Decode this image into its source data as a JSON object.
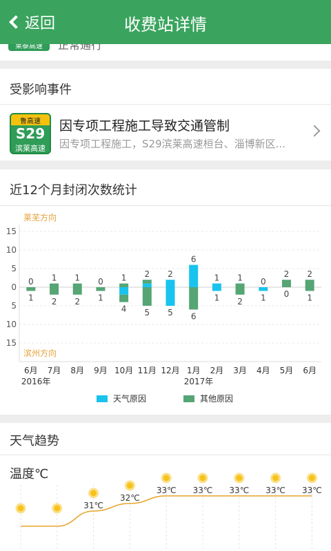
{
  "header": {
    "back_label": "返回",
    "title": "收费站详情"
  },
  "top_partial": {
    "badge": "莱泰高速",
    "text": "正常通行"
  },
  "events": {
    "heading": "受影响事件",
    "item": {
      "badge_top": "鲁高速",
      "badge_code": "S29",
      "badge_name": "滨莱高速",
      "title": "因专项工程施工导致交通管制",
      "subtitle": "因专项工程施工，S29滨莱高速桓台、淄博新区..."
    }
  },
  "closure_chart": {
    "heading": "近12个月封闭次数统计",
    "chart_data": {
      "type": "bar",
      "top_direction_label": "莱芜方向",
      "bottom_direction_label": "滨州方向",
      "y_ticks": [
        "15",
        "10",
        "5",
        "0",
        "5",
        "10",
        "15"
      ],
      "categories": [
        "6月",
        "7月",
        "8月",
        "9月",
        "10月",
        "11月",
        "12月",
        "1月",
        "2月",
        "3月",
        "4月",
        "5月",
        "6月"
      ],
      "year_labels": [
        {
          "index": 0,
          "text": "2016年"
        },
        {
          "index": 7,
          "text": "2017年"
        }
      ],
      "ylim": [
        -15,
        15
      ],
      "up": {
        "weather": [
          0,
          0,
          0,
          0,
          0,
          1,
          2,
          6,
          1,
          0,
          0,
          0,
          0
        ],
        "other": [
          0,
          1,
          1,
          0,
          1,
          1,
          0,
          0,
          0,
          1,
          0,
          2,
          2
        ],
        "totals": [
          0,
          1,
          1,
          0,
          1,
          2,
          2,
          6,
          1,
          1,
          0,
          2,
          2
        ]
      },
      "down": {
        "weather": [
          0,
          0,
          0,
          0,
          2,
          0,
          5,
          0,
          1,
          0,
          1,
          0,
          0
        ],
        "other": [
          1,
          2,
          2,
          1,
          2,
          5,
          0,
          6,
          0,
          2,
          0,
          0,
          1
        ],
        "totals": [
          1,
          2,
          2,
          1,
          4,
          5,
          5,
          6,
          1,
          2,
          1,
          0,
          1
        ]
      },
      "legend": [
        {
          "label": "天气原因",
          "color": "#19c3ee"
        },
        {
          "label": "其他原因",
          "color": "#55a575"
        }
      ]
    }
  },
  "weather_trend": {
    "heading": "天气趋势",
    "temp_label": "温度℃",
    "points": [
      {
        "value": 29,
        "label": ""
      },
      {
        "value": 29,
        "label": ""
      },
      {
        "value": 31,
        "label": "31℃"
      },
      {
        "value": 32,
        "label": "32℃"
      },
      {
        "value": 33,
        "label": "33℃"
      },
      {
        "value": 33,
        "label": "33℃"
      },
      {
        "value": 33,
        "label": "33℃"
      },
      {
        "value": 33,
        "label": "33℃"
      },
      {
        "value": 33,
        "label": "33℃"
      }
    ],
    "colors": {
      "line": "#e6a42a",
      "sun": "#f7c21b"
    }
  }
}
